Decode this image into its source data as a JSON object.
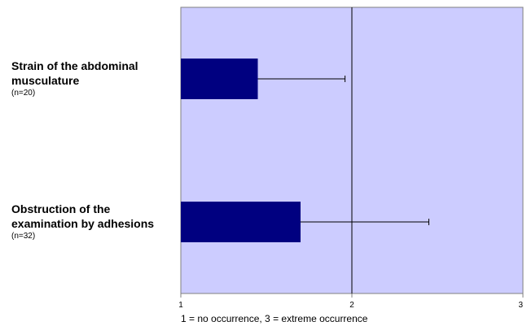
{
  "chart_data": {
    "type": "bar",
    "orientation": "horizontal",
    "categories": [
      {
        "lines": [
          "Strain of the abdominal",
          "musculature"
        ],
        "n": "(n=20)"
      },
      {
        "lines": [
          "Obstruction of the",
          "examination by adhesions"
        ],
        "n": "(n=32)"
      }
    ],
    "values": [
      1.45,
      1.7
    ],
    "error_upper": [
      1.96,
      2.45
    ],
    "xlim": [
      1,
      3
    ],
    "xticks": [
      "1",
      "2",
      "3"
    ],
    "reference_line": 2,
    "xlabel": "1 = no occurrence, 3 = extreme occurrence",
    "grid": false,
    "colors": {
      "plot_background": "#ccccff",
      "bar": "#000080",
      "frame": "#808080",
      "error": "#000000"
    }
  }
}
